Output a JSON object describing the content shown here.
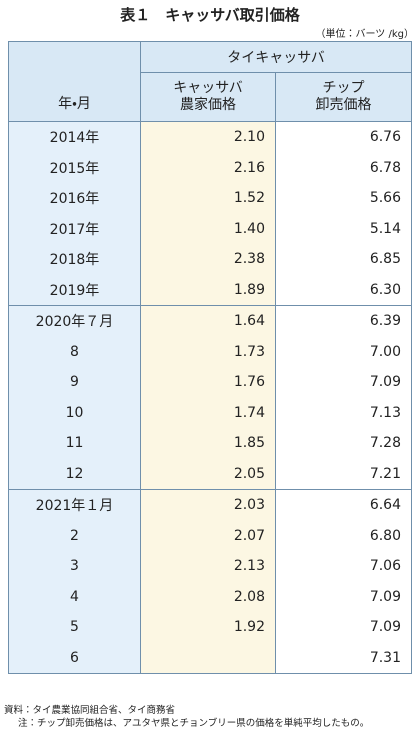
{
  "title": "表１　キャッサバ取引価格",
  "unit": "（単位：バーツ /kg）",
  "table": {
    "header": {
      "row_label": "年・月",
      "group": "タイキャッサバ",
      "columns": [
        [
          "キャッサバ",
          "農家価格"
        ],
        [
          "チップ",
          "卸売価格"
        ]
      ]
    },
    "groups": [
      {
        "rows": [
          [
            "2014年",
            "2.10",
            "6.76"
          ],
          [
            "2015年",
            "2.16",
            "6.78"
          ],
          [
            "2016年",
            "1.52",
            "5.66"
          ],
          [
            "2017年",
            "1.40",
            "5.14"
          ],
          [
            "2018年",
            "2.38",
            "6.85"
          ],
          [
            "2019年",
            "1.89",
            "6.30"
          ]
        ]
      },
      {
        "rows": [
          [
            "2020年７月",
            "1.64",
            "6.39"
          ],
          [
            "8",
            "1.73",
            "7.00"
          ],
          [
            "9",
            "1.76",
            "7.09"
          ],
          [
            "10",
            "1.74",
            "7.13"
          ],
          [
            "11",
            "1.85",
            "7.28"
          ],
          [
            "12",
            "2.05",
            "7.21"
          ]
        ]
      },
      {
        "rows": [
          [
            "2021年１月",
            "2.03",
            "6.64"
          ],
          [
            "2",
            "2.07",
            "6.80"
          ],
          [
            "3",
            "2.13",
            "7.06"
          ],
          [
            "4",
            "2.08",
            "7.09"
          ],
          [
            "5",
            "1.92",
            "7.09"
          ],
          [
            "6",
            null,
            "7.31"
          ]
        ]
      }
    ]
  },
  "notes": [
    "資料：タイ農業協同組合省、タイ商務省",
    "注：チップ卸売価格は、アユタヤ県とチョンブリー県の価格を単純平均したもの。"
  ]
}
